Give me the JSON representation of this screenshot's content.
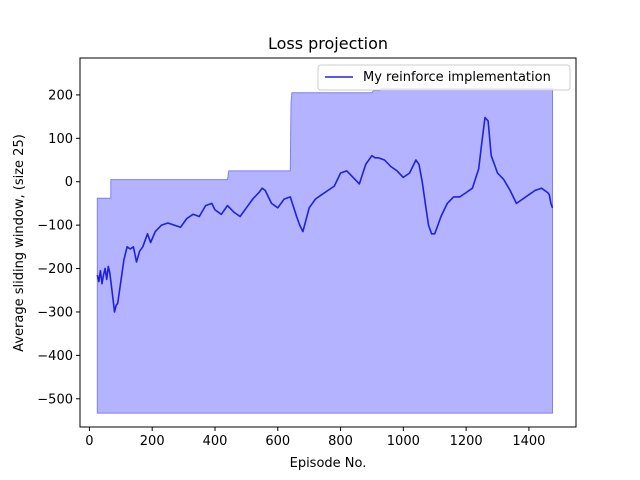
{
  "chart_data": {
    "type": "line",
    "title": "Loss projection",
    "xlabel": "Episode No.",
    "ylabel": "Average sliding window, (size 25)",
    "xlim": [
      -30,
      1550
    ],
    "ylim": [
      -565,
      285
    ],
    "xticks": [
      0,
      200,
      400,
      600,
      800,
      1000,
      1200,
      1400
    ],
    "yticks": [
      -500,
      -400,
      -300,
      -200,
      -100,
      0,
      100,
      200
    ],
    "legend": {
      "placement": "top-right",
      "entries": [
        "My reinforce implementation"
      ]
    },
    "colors": {
      "line": "#2020e0",
      "band_fill": "#b3b3ff",
      "band_edge": "#8080ee"
    },
    "band": {
      "name": "",
      "x": [
        25,
        25,
        68,
        68,
        440,
        444,
        640,
        642,
        645,
        900,
        905,
        925,
        930,
        1475
      ],
      "upper": [
        -38,
        -38,
        -38,
        5,
        5,
        25,
        25,
        180,
        205,
        205,
        210,
        210,
        215,
        215
      ],
      "lower": -533
    },
    "series": [
      {
        "name": "My reinforce implementation",
        "x": [
          25,
          30,
          35,
          40,
          45,
          50,
          55,
          60,
          65,
          70,
          75,
          80,
          85,
          90,
          100,
          110,
          120,
          130,
          140,
          150,
          160,
          170,
          180,
          185,
          195,
          210,
          230,
          250,
          270,
          290,
          310,
          330,
          350,
          370,
          390,
          400,
          420,
          440,
          460,
          480,
          500,
          520,
          540,
          550,
          560,
          580,
          600,
          620,
          640,
          660,
          670,
          680,
          700,
          720,
          740,
          760,
          780,
          800,
          820,
          840,
          860,
          880,
          900,
          910,
          920,
          940,
          960,
          980,
          1000,
          1020,
          1040,
          1050,
          1060,
          1070,
          1080,
          1090,
          1100,
          1110,
          1120,
          1140,
          1160,
          1180,
          1200,
          1220,
          1240,
          1250,
          1260,
          1270,
          1280,
          1290,
          1300,
          1320,
          1340,
          1360,
          1380,
          1400,
          1420,
          1440,
          1460,
          1465,
          1470,
          1475
        ],
        "y": [
          -215,
          -230,
          -205,
          -235,
          -215,
          -200,
          -225,
          -195,
          -210,
          -240,
          -270,
          -300,
          -285,
          -280,
          -230,
          -180,
          -150,
          -155,
          -150,
          -185,
          -160,
          -150,
          -130,
          -120,
          -140,
          -115,
          -100,
          -95,
          -100,
          -105,
          -85,
          -75,
          -80,
          -55,
          -50,
          -65,
          -75,
          -55,
          -70,
          -80,
          -60,
          -40,
          -25,
          -15,
          -20,
          -50,
          -60,
          -40,
          -35,
          -80,
          -100,
          -115,
          -60,
          -40,
          -30,
          -20,
          -10,
          20,
          25,
          10,
          -5,
          40,
          60,
          55,
          55,
          50,
          35,
          25,
          10,
          20,
          50,
          40,
          0,
          -50,
          -100,
          -120,
          -120,
          -100,
          -80,
          -50,
          -35,
          -35,
          -25,
          -15,
          30,
          90,
          148,
          140,
          60,
          40,
          20,
          5,
          -20,
          -50,
          -40,
          -30,
          -20,
          -15,
          -25,
          -30,
          -50,
          -60
        ]
      }
    ]
  }
}
